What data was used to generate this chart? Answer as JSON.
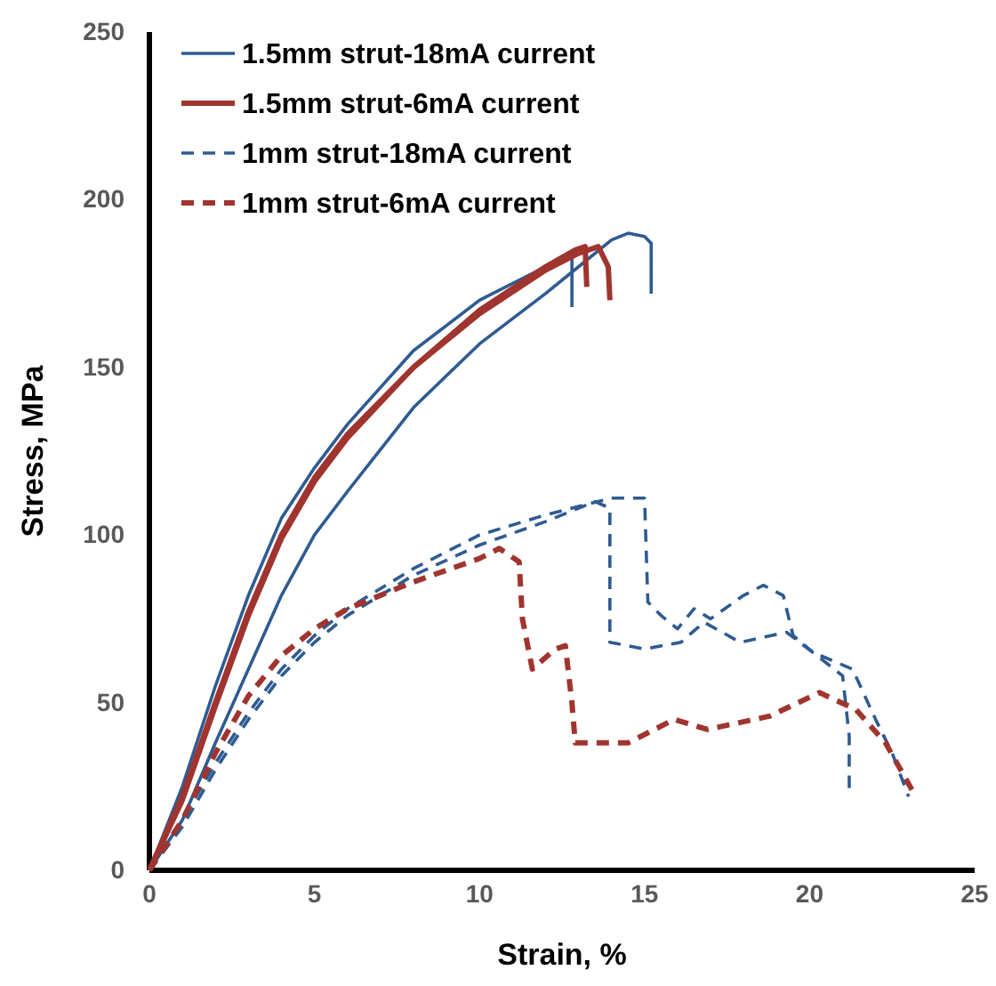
{
  "chart_data": {
    "type": "line",
    "xlabel": "Strain, %",
    "ylabel": "Stress, MPa",
    "xlim": [
      0,
      25
    ],
    "ylim": [
      0,
      250
    ],
    "xticks": [
      0,
      5,
      10,
      15,
      20,
      25
    ],
    "yticks": [
      0,
      50,
      100,
      150,
      200,
      250
    ],
    "grid": false,
    "legend": "top left",
    "marker": "none",
    "series": [
      {
        "name": "1.5mm strut-18mA current",
        "color": "#2e5b91",
        "line_style": "solid",
        "x": [
          0,
          1,
          2,
          3,
          4,
          5,
          6,
          8,
          10,
          12,
          12.8,
          12.8
        ],
        "values": [
          0,
          25,
          55,
          82,
          105,
          120,
          133,
          155,
          170,
          180,
          183,
          168
        ]
      },
      {
        "color": "#2e5b91",
        "line_style": "solid",
        "x": [
          0,
          1,
          2,
          3,
          4,
          5,
          6,
          8,
          10,
          12,
          13,
          14,
          14.5,
          15,
          15.2,
          15.2
        ],
        "values": [
          0,
          15,
          38,
          60,
          82,
          100,
          113,
          138,
          157,
          172,
          180,
          188,
          190,
          189,
          187,
          172
        ]
      },
      {
        "name": "1.5mm strut-6mA current",
        "color": "#a0342f",
        "line_style": "solid",
        "x": [
          0,
          1,
          2,
          3,
          4,
          5,
          6,
          8,
          10,
          12,
          12.9,
          13.2,
          13.25
        ],
        "values": [
          0,
          22,
          50,
          77,
          100,
          117,
          130,
          150,
          167,
          180,
          185,
          186,
          174
        ]
      },
      {
        "color": "#a0342f",
        "line_style": "solid",
        "x": [
          0,
          1,
          2,
          3,
          4,
          5,
          6,
          8,
          10,
          12,
          13,
          13.6,
          13.9,
          13.95
        ],
        "values": [
          0,
          21,
          49,
          76,
          99,
          116,
          129,
          150,
          166,
          179,
          184,
          186,
          180,
          170
        ]
      },
      {
        "name": "1mm strut-18mA current",
        "color": "#2e5b91",
        "line_style": "dashed",
        "x": [
          0,
          1,
          2,
          3,
          4,
          5,
          6,
          8,
          10,
          12,
          14,
          15,
          15.1,
          15.5,
          16,
          16.5,
          17,
          18,
          18.6,
          19.2,
          19.5,
          20.1,
          21,
          21.2,
          21.2
        ],
        "values": [
          0,
          15,
          32,
          47,
          60,
          70,
          78,
          90,
          100,
          106,
          111,
          111,
          80,
          76,
          72,
          78,
          75,
          82,
          85,
          82,
          70,
          65,
          58,
          40,
          24
        ]
      },
      {
        "color": "#2e5b91",
        "line_style": "dashed",
        "x": [
          0,
          1,
          2,
          3,
          4,
          5,
          6,
          8,
          10,
          12,
          13.5,
          13.95,
          13.95,
          15,
          16.1,
          16.8,
          17.9,
          19.3,
          20.1,
          21.3,
          22,
          22.5,
          23
        ],
        "values": [
          0,
          13,
          30,
          45,
          58,
          68,
          76,
          88,
          97,
          104,
          110,
          108,
          68,
          66,
          68,
          74,
          68,
          71,
          65,
          60,
          45,
          35,
          22
        ]
      },
      {
        "name": "1mm strut-6mA current",
        "color": "#a0342f",
        "line_style": "dashed",
        "x": [
          0,
          1,
          2,
          3,
          4,
          5,
          6,
          8,
          10,
          10.6,
          11.2,
          11.3,
          11.6,
          12.3,
          12.6,
          12.8,
          12.9,
          14.5,
          15.9,
          16.9,
          18.8,
          20.3,
          21.4,
          22.3,
          23.1
        ],
        "values": [
          0,
          15,
          35,
          52,
          64,
          72,
          78,
          86,
          93,
          96,
          92,
          75,
          60,
          66,
          67,
          50,
          38,
          38,
          45,
          42,
          46,
          53,
          48,
          38,
          24
        ]
      }
    ]
  }
}
